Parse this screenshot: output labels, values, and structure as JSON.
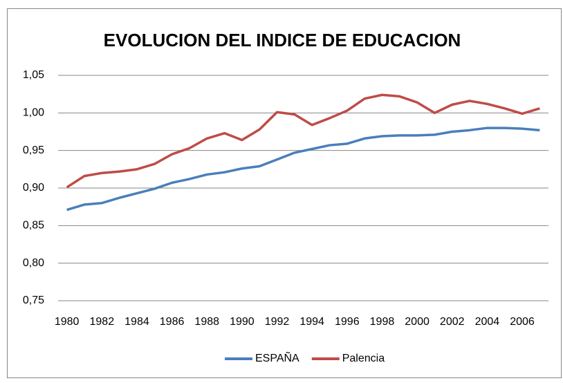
{
  "chart_data": {
    "type": "line",
    "title": "EVOLUCION DEL INDICE DE EDUCACION",
    "x": [
      1980,
      1981,
      1982,
      1983,
      1984,
      1985,
      1986,
      1987,
      1988,
      1989,
      1990,
      1991,
      1992,
      1993,
      1994,
      1995,
      1996,
      1997,
      1998,
      1999,
      2000,
      2001,
      2002,
      2003,
      2004,
      2005,
      2006,
      2007
    ],
    "series": [
      {
        "name": "ESPAÑA",
        "color": "#4a7ebb",
        "values": [
          0.871,
          0.878,
          0.88,
          0.887,
          0.893,
          0.899,
          0.907,
          0.912,
          0.918,
          0.921,
          0.926,
          0.929,
          0.938,
          0.947,
          0.952,
          0.957,
          0.959,
          0.966,
          0.969,
          0.97,
          0.97,
          0.971,
          0.975,
          0.977,
          0.98,
          0.98,
          0.979,
          0.977
        ]
      },
      {
        "name": "Palencia",
        "color": "#be4b48",
        "values": [
          0.901,
          0.916,
          0.92,
          0.922,
          0.925,
          0.932,
          0.945,
          0.953,
          0.966,
          0.973,
          0.964,
          0.978,
          1.001,
          0.998,
          0.984,
          0.993,
          1.003,
          1.019,
          1.024,
          1.022,
          1.014,
          1.0,
          1.011,
          1.016,
          1.012,
          1.006,
          0.999,
          1.006
        ]
      }
    ],
    "xlim": [
      1979.5,
      2007.5
    ],
    "xticks": [
      1980,
      1982,
      1984,
      1986,
      1988,
      1990,
      1992,
      1994,
      1996,
      1998,
      2000,
      2002,
      2004,
      2006
    ],
    "ylim": [
      0.75,
      1.05
    ],
    "yticks": [
      {
        "value": 0.75,
        "label": "0,75"
      },
      {
        "value": 0.8,
        "label": "0,80"
      },
      {
        "value": 0.85,
        "label": "0,85"
      },
      {
        "value": 0.9,
        "label": "0,90"
      },
      {
        "value": 0.95,
        "label": "0,95"
      },
      {
        "value": 1.0,
        "label": "1,00"
      },
      {
        "value": 1.05,
        "label": "1,05"
      }
    ],
    "grid": true,
    "legend": "bottom"
  }
}
